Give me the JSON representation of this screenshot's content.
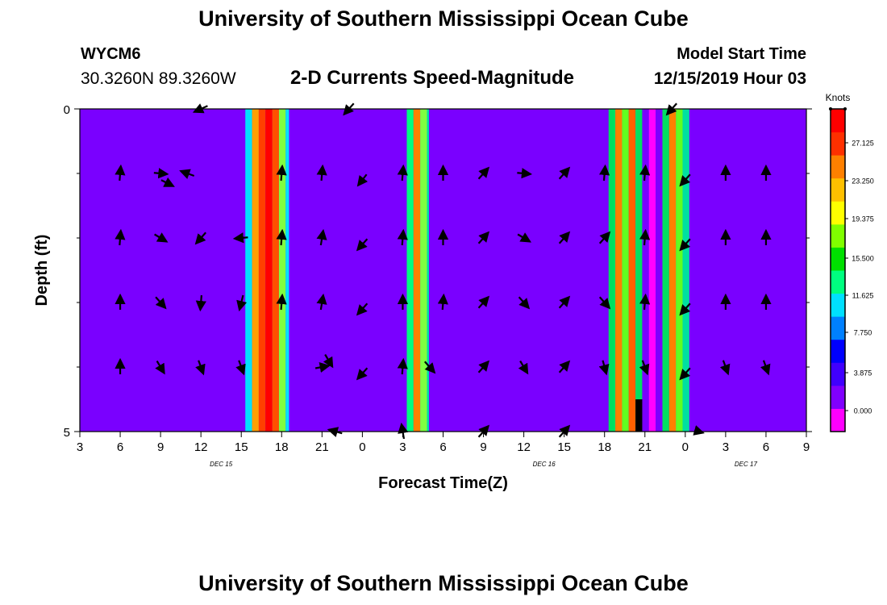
{
  "header": {
    "title": "University of Southern Mississippi Ocean Cube",
    "station_id": "WYCM6",
    "coordinates": "30.3260N 89.3260W",
    "chart_title": "2-D Currents Speed-Magnitude",
    "model_label": "Model Start Time",
    "model_time": "12/15/2019 Hour 03"
  },
  "footer": {
    "title": "University of Southern Mississippi Ocean Cube"
  },
  "chart_data": {
    "type": "heatmap",
    "title": "2-D Currents Speed-Magnitude",
    "xlabel": "Forecast Time(Z)",
    "ylabel": "Depth (ft)",
    "x_tick_labels": [
      "3",
      "6",
      "9",
      "12",
      "15",
      "18",
      "21",
      "0",
      "3",
      "6",
      "9",
      "12",
      "15",
      "18",
      "21",
      "0",
      "3",
      "6",
      "9"
    ],
    "date_labels": [
      {
        "label": "DEC 15",
        "at_tick": 3.5
      },
      {
        "label": "DEC 16",
        "at_tick": 11.5
      },
      {
        "label": "DEC 17",
        "at_tick": 16.5
      }
    ],
    "xlim_hours": [
      0,
      54
    ],
    "ylim": [
      0,
      5
    ],
    "y_tick_labels": [
      "0",
      "5"
    ],
    "colorbar": {
      "title": "Knots",
      "labels": [
        "27.125",
        "23.250",
        "19.375",
        "15.500",
        "11.625",
        "7.750",
        "3.875",
        "0.000"
      ],
      "colors": [
        "#ff00ff",
        "#8000ff",
        "#4000ff",
        "#0000ff",
        "#0080ff",
        "#00e0ff",
        "#00ff80",
        "#00e000",
        "#80ff00",
        "#ffff00",
        "#ffc000",
        "#ff8000",
        "#ff3000",
        "#ff0000"
      ]
    },
    "background_color": "#7a00ff",
    "bands": [
      {
        "x_start": 12.3,
        "x_end": 12.8,
        "color": "#00e0ff"
      },
      {
        "x_start": 12.8,
        "x_end": 13.3,
        "color": "#ffa000"
      },
      {
        "x_start": 13.3,
        "x_end": 13.8,
        "color": "#ff4000"
      },
      {
        "x_start": 13.8,
        "x_end": 14.3,
        "color": "#ff0000"
      },
      {
        "x_start": 14.3,
        "x_end": 14.8,
        "color": "#ff5000"
      },
      {
        "x_start": 14.8,
        "x_end": 15.3,
        "color": "#80ff40"
      },
      {
        "x_start": 15.3,
        "x_end": 15.55,
        "color": "#00e0ff"
      },
      {
        "x_start": 24.3,
        "x_end": 24.8,
        "color": "#00ff80"
      },
      {
        "x_start": 24.8,
        "x_end": 25.3,
        "color": "#ff8000"
      },
      {
        "x_start": 25.3,
        "x_end": 25.8,
        "color": "#80ff40"
      },
      {
        "x_start": 25.8,
        "x_end": 25.95,
        "color": "#00e0a0"
      },
      {
        "x_start": 39.3,
        "x_end": 39.8,
        "color": "#00e060"
      },
      {
        "x_start": 39.8,
        "x_end": 40.3,
        "color": "#ff8000"
      },
      {
        "x_start": 40.3,
        "x_end": 40.8,
        "color": "#60ff20"
      },
      {
        "x_start": 40.8,
        "x_end": 41.3,
        "color": "#ff6000"
      },
      {
        "x_start": 41.3,
        "x_end": 41.8,
        "color": "#00e060"
      },
      {
        "x_start": 41.8,
        "x_end": 42.3,
        "color": "#7a00ff"
      },
      {
        "x_start": 42.3,
        "x_end": 42.8,
        "color": "#ff00ff"
      },
      {
        "x_start": 42.8,
        "x_end": 43.3,
        "color": "#7a00ff"
      },
      {
        "x_start": 43.3,
        "x_end": 43.8,
        "color": "#00e060"
      },
      {
        "x_start": 43.8,
        "x_end": 44.3,
        "color": "#ff8000"
      },
      {
        "x_start": 44.3,
        "x_end": 44.8,
        "color": "#60ff20"
      },
      {
        "x_start": 44.8,
        "x_end": 45.3,
        "color": "#00e0a0"
      }
    ],
    "mask": [
      {
        "x_start": 41.3,
        "x_end": 41.8,
        "y_start": 4.5,
        "y_end": 5,
        "color": "#000000"
      }
    ],
    "vectors": [
      {
        "x": 9,
        "y": 0.0,
        "u": -0.55,
        "v": 0.25
      },
      {
        "x": 20,
        "y": 0.0,
        "u": -0.4,
        "v": 0.45
      },
      {
        "x": 44,
        "y": 0.0,
        "u": -0.4,
        "v": 0.45
      },
      {
        "x": 3,
        "y": 1.0,
        "u": 0.05,
        "v": -0.6
      },
      {
        "x": 6,
        "y": 1.0,
        "u": 0.55,
        "v": 0.05
      },
      {
        "x": 8,
        "y": 1.0,
        "u": -0.55,
        "v": -0.2
      },
      {
        "x": 6.5,
        "y": 1.15,
        "u": 0.5,
        "v": 0.25
      },
      {
        "x": 15,
        "y": 1.0,
        "u": 0.05,
        "v": -0.6
      },
      {
        "x": 18,
        "y": 1.0,
        "u": 0.05,
        "v": -0.6
      },
      {
        "x": 21,
        "y": 1.1,
        "u": -0.35,
        "v": 0.45
      },
      {
        "x": 24,
        "y": 1.0,
        "u": 0.05,
        "v": -0.6
      },
      {
        "x": 27,
        "y": 1.0,
        "u": 0.0,
        "v": -0.6
      },
      {
        "x": 30,
        "y": 1.0,
        "u": 0.4,
        "v": -0.45
      },
      {
        "x": 33,
        "y": 1.0,
        "u": 0.55,
        "v": 0.05
      },
      {
        "x": 36,
        "y": 1.0,
        "u": 0.4,
        "v": -0.45
      },
      {
        "x": 39,
        "y": 1.0,
        "u": 0.05,
        "v": -0.6
      },
      {
        "x": 42,
        "y": 1.0,
        "u": 0.05,
        "v": -0.6
      },
      {
        "x": 45,
        "y": 1.1,
        "u": -0.4,
        "v": 0.45
      },
      {
        "x": 48,
        "y": 1.0,
        "u": 0.0,
        "v": -0.6
      },
      {
        "x": 51,
        "y": 1.0,
        "u": 0.0,
        "v": -0.6
      },
      {
        "x": 3,
        "y": 2.0,
        "u": 0.05,
        "v": -0.6
      },
      {
        "x": 6,
        "y": 2.0,
        "u": 0.5,
        "v": 0.3
      },
      {
        "x": 9,
        "y": 2.0,
        "u": -0.4,
        "v": 0.45
      },
      {
        "x": 12,
        "y": 2.0,
        "u": -0.55,
        "v": 0.05
      },
      {
        "x": 15,
        "y": 2.0,
        "u": 0.05,
        "v": -0.6
      },
      {
        "x": 18,
        "y": 2.0,
        "u": 0.1,
        "v": -0.6
      },
      {
        "x": 21,
        "y": 2.1,
        "u": -0.4,
        "v": 0.45
      },
      {
        "x": 24,
        "y": 2.0,
        "u": 0.05,
        "v": -0.6
      },
      {
        "x": 27,
        "y": 2.0,
        "u": 0.0,
        "v": -0.6
      },
      {
        "x": 30,
        "y": 2.0,
        "u": 0.4,
        "v": -0.45
      },
      {
        "x": 33,
        "y": 2.0,
        "u": 0.5,
        "v": 0.3
      },
      {
        "x": 36,
        "y": 2.0,
        "u": 0.4,
        "v": -0.45
      },
      {
        "x": 39,
        "y": 2.0,
        "u": 0.4,
        "v": -0.45
      },
      {
        "x": 42,
        "y": 2.0,
        "u": 0.05,
        "v": -0.6
      },
      {
        "x": 45,
        "y": 2.1,
        "u": -0.4,
        "v": 0.45
      },
      {
        "x": 48,
        "y": 2.0,
        "u": 0.0,
        "v": -0.6
      },
      {
        "x": 51,
        "y": 2.0,
        "u": 0.0,
        "v": -0.6
      },
      {
        "x": 3,
        "y": 3.0,
        "u": 0.0,
        "v": -0.6
      },
      {
        "x": 6,
        "y": 3.0,
        "u": 0.4,
        "v": 0.45
      },
      {
        "x": 9,
        "y": 3.0,
        "u": -0.05,
        "v": 0.6
      },
      {
        "x": 12,
        "y": 3.0,
        "u": -0.15,
        "v": 0.6
      },
      {
        "x": 15,
        "y": 3.0,
        "u": 0.05,
        "v": -0.6
      },
      {
        "x": 18,
        "y": 3.0,
        "u": 0.1,
        "v": -0.6
      },
      {
        "x": 21,
        "y": 3.1,
        "u": -0.4,
        "v": 0.45
      },
      {
        "x": 24,
        "y": 3.0,
        "u": 0.0,
        "v": -0.6
      },
      {
        "x": 27,
        "y": 3.0,
        "u": 0.05,
        "v": -0.6
      },
      {
        "x": 30,
        "y": 3.0,
        "u": 0.4,
        "v": -0.45
      },
      {
        "x": 33,
        "y": 3.0,
        "u": 0.4,
        "v": 0.45
      },
      {
        "x": 36,
        "y": 3.0,
        "u": 0.4,
        "v": -0.45
      },
      {
        "x": 39,
        "y": 3.0,
        "u": 0.4,
        "v": 0.45
      },
      {
        "x": 42,
        "y": 3.0,
        "u": 0.05,
        "v": -0.6
      },
      {
        "x": 45,
        "y": 3.1,
        "u": -0.4,
        "v": 0.45
      },
      {
        "x": 48,
        "y": 3.0,
        "u": 0.0,
        "v": -0.6
      },
      {
        "x": 51,
        "y": 3.0,
        "u": 0.0,
        "v": -0.6
      },
      {
        "x": 3,
        "y": 4.0,
        "u": 0.0,
        "v": -0.6
      },
      {
        "x": 6,
        "y": 4.0,
        "u": 0.3,
        "v": 0.5
      },
      {
        "x": 9,
        "y": 4.0,
        "u": 0.2,
        "v": 0.55
      },
      {
        "x": 12,
        "y": 4.0,
        "u": 0.2,
        "v": 0.55
      },
      {
        "x": 18,
        "y": 4.0,
        "u": 0.55,
        "v": -0.1
      },
      {
        "x": 18.5,
        "y": 3.9,
        "u": 0.3,
        "v": 0.5
      },
      {
        "x": 21,
        "y": 4.1,
        "u": -0.4,
        "v": 0.45
      },
      {
        "x": 24,
        "y": 4.0,
        "u": 0.05,
        "v": -0.6
      },
      {
        "x": 26,
        "y": 4.0,
        "u": 0.4,
        "v": 0.45
      },
      {
        "x": 30,
        "y": 4.0,
        "u": 0.4,
        "v": -0.45
      },
      {
        "x": 33,
        "y": 4.0,
        "u": 0.3,
        "v": 0.5
      },
      {
        "x": 36,
        "y": 4.0,
        "u": 0.4,
        "v": -0.45
      },
      {
        "x": 39,
        "y": 4.0,
        "u": 0.15,
        "v": 0.55
      },
      {
        "x": 42,
        "y": 4.0,
        "u": 0.2,
        "v": 0.55
      },
      {
        "x": 45,
        "y": 4.1,
        "u": -0.4,
        "v": 0.45
      },
      {
        "x": 48,
        "y": 4.0,
        "u": 0.2,
        "v": 0.55
      },
      {
        "x": 51,
        "y": 4.0,
        "u": 0.2,
        "v": 0.55
      },
      {
        "x": 19,
        "y": 5.0,
        "u": -0.55,
        "v": -0.15
      },
      {
        "x": 24,
        "y": 5.0,
        "u": -0.1,
        "v": -0.6
      },
      {
        "x": 30,
        "y": 5.0,
        "u": 0.4,
        "v": -0.45
      },
      {
        "x": 36,
        "y": 5.0,
        "u": 0.4,
        "v": -0.45
      },
      {
        "x": 46,
        "y": 5.0,
        "u": 0.35,
        "v": 0.1
      }
    ]
  }
}
